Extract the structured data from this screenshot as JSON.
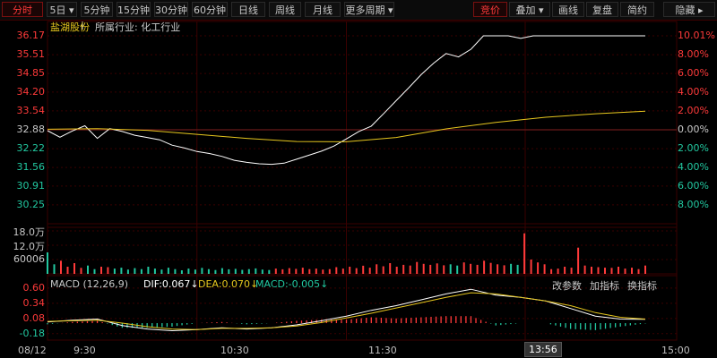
{
  "toolbar": {
    "left_tabs": [
      {
        "label": "分时",
        "active": true
      },
      {
        "label": "5日 ▾",
        "active": false
      },
      {
        "label": "5分钟",
        "active": false
      },
      {
        "label": "15分钟",
        "active": false
      },
      {
        "label": "30分钟",
        "active": false
      },
      {
        "label": "60分钟",
        "active": false
      },
      {
        "label": "日线",
        "active": false
      },
      {
        "label": "周线",
        "active": false
      },
      {
        "label": "月线",
        "active": false
      },
      {
        "label": "更多周期 ▾",
        "active": false
      }
    ],
    "right_tabs": [
      {
        "label": "竞价",
        "active": true
      },
      {
        "label": "叠加 ▾",
        "active": false
      },
      {
        "label": "画线",
        "active": false
      },
      {
        "label": "复盘",
        "active": false
      },
      {
        "label": "简约",
        "active": false
      },
      {
        "label": "隐藏 ▸",
        "active": false
      }
    ]
  },
  "header": {
    "stock_name": "盐湖股份",
    "industry": "所属行业: 化工行业"
  },
  "price_axis": {
    "left_labels": [
      "36.17",
      "35.51",
      "34.85",
      "34.20",
      "33.54",
      "32.88",
      "32.22",
      "31.56",
      "30.91",
      "30.25"
    ],
    "right_labels": [
      "10.01%",
      "8.00%",
      "6.00%",
      "4.00%",
      "2.00%",
      "0.00%",
      "2.00%",
      "4.00%",
      "6.00%",
      "8.00%"
    ]
  },
  "volume_axis": {
    "labels": [
      "18.0万",
      "12.0万",
      "60006"
    ]
  },
  "macd": {
    "title": "MACD (12,26,9)",
    "dif": "DIF:0.067↓",
    "dea": "DEA:0.070↓",
    "macd": "MACD:-0.005↓",
    "axis_labels": [
      "0.60",
      "0.34",
      "0.08",
      "-0.18"
    ],
    "buttons": [
      "改参数",
      "加指标",
      "换指标"
    ]
  },
  "time_axis": {
    "date": "08/12",
    "ticks": [
      "9:30",
      "10:30",
      "11:30",
      "13:56",
      "15:00"
    ]
  },
  "colors": {
    "up": "#ff3a3a",
    "down": "#22c8a0",
    "price_line": "#ffffff",
    "avg_line": "#e6c61e",
    "dif_line": "#ffffff",
    "dea_line": "#e6c61e",
    "grid": "#3a0000"
  },
  "chart_data": {
    "type": "line",
    "prev_close": 32.88,
    "price_ylim": [
      29.59,
      36.17
    ],
    "price_series": {
      "x": [
        0,
        5,
        10,
        15,
        20,
        25,
        30,
        35,
        40,
        45,
        50,
        55,
        60,
        65,
        70,
        75,
        80,
        85,
        90,
        95,
        100,
        105,
        110,
        115,
        120,
        125,
        130,
        135,
        140,
        145,
        150,
        155,
        160,
        165,
        170,
        175,
        180,
        185,
        190,
        195,
        200,
        205,
        210,
        215,
        220,
        225,
        230,
        235,
        240
      ],
      "y": [
        32.85,
        32.62,
        32.84,
        33.02,
        32.58,
        32.92,
        32.82,
        32.69,
        32.61,
        32.53,
        32.34,
        32.24,
        32.12,
        32.05,
        31.95,
        31.81,
        31.74,
        31.69,
        31.67,
        31.71,
        31.85,
        31.99,
        32.13,
        32.31,
        32.56,
        32.82,
        33.01,
        33.45,
        33.9,
        34.35,
        34.81,
        35.21,
        35.55,
        35.43,
        35.7,
        36.17,
        36.17,
        36.17,
        36.08,
        36.17,
        36.17,
        36.17,
        36.17,
        36.17,
        36.17,
        36.17,
        36.17,
        36.17,
        36.17
      ]
    },
    "avg_series": {
      "x": [
        0,
        20,
        40,
        60,
        80,
        100,
        120,
        140,
        160,
        180,
        200,
        220,
        240
      ],
      "y": [
        32.9,
        32.92,
        32.86,
        32.72,
        32.58,
        32.47,
        32.46,
        32.61,
        32.91,
        33.14,
        33.32,
        33.44,
        33.53
      ]
    },
    "volume_ylim": [
      0,
      180000
    ],
    "volume": [
      90000,
      40000,
      55000,
      30000,
      45000,
      25000,
      35000,
      20000,
      30000,
      28000,
      22000,
      26000,
      18000,
      24000,
      20000,
      30000,
      22000,
      18000,
      26000,
      20000,
      15000,
      22000,
      18000,
      25000,
      20000,
      16000,
      24000,
      19000,
      21000,
      17000,
      20000,
      23000,
      18000,
      16000,
      22000,
      19000,
      24000,
      21000,
      26000,
      20000,
      22000,
      18000,
      20000,
      28000,
      22000,
      30000,
      24000,
      34000,
      26000,
      40000,
      32000,
      45000,
      30000,
      38000,
      35000,
      50000,
      42000,
      38000,
      44000,
      36000,
      40000,
      35000,
      48000,
      42000,
      38000,
      55000,
      46000,
      40000,
      36000,
      42000,
      38000,
      170000,
      60000,
      48000,
      40000,
      20000,
      22000,
      30000,
      26000,
      110000,
      35000,
      30000,
      28000,
      26000,
      25000,
      30000,
      22000,
      26000,
      20000,
      35000
    ],
    "macd_ylim": [
      -0.26,
      0.66
    ],
    "dif": {
      "x": [
        0,
        10,
        20,
        30,
        40,
        50,
        60,
        70,
        80,
        90,
        100,
        110,
        120,
        130,
        140,
        150,
        160,
        170,
        180,
        190,
        200,
        210,
        220,
        230,
        240
      ],
      "y": [
        0.02,
        0.05,
        0.07,
        -0.04,
        -0.1,
        -0.13,
        -0.11,
        -0.08,
        -0.1,
        -0.08,
        -0.03,
        0.04,
        0.12,
        0.22,
        0.3,
        0.4,
        0.5,
        0.58,
        0.48,
        0.44,
        0.38,
        0.25,
        0.12,
        0.07,
        0.067
      ]
    },
    "dea": {
      "x": [
        0,
        10,
        20,
        30,
        40,
        50,
        60,
        70,
        80,
        90,
        100,
        110,
        120,
        130,
        140,
        150,
        160,
        170,
        180,
        190,
        200,
        210,
        220,
        230,
        240
      ],
      "y": [
        0.03,
        0.04,
        0.05,
        0.0,
        -0.06,
        -0.1,
        -0.11,
        -0.09,
        -0.09,
        -0.08,
        -0.05,
        0.01,
        0.09,
        0.17,
        0.26,
        0.35,
        0.44,
        0.52,
        0.5,
        0.44,
        0.38,
        0.3,
        0.18,
        0.1,
        0.07
      ]
    },
    "x_ticks": [
      "9:30",
      "10:30",
      "11:30",
      "13:56",
      "15:00"
    ]
  }
}
